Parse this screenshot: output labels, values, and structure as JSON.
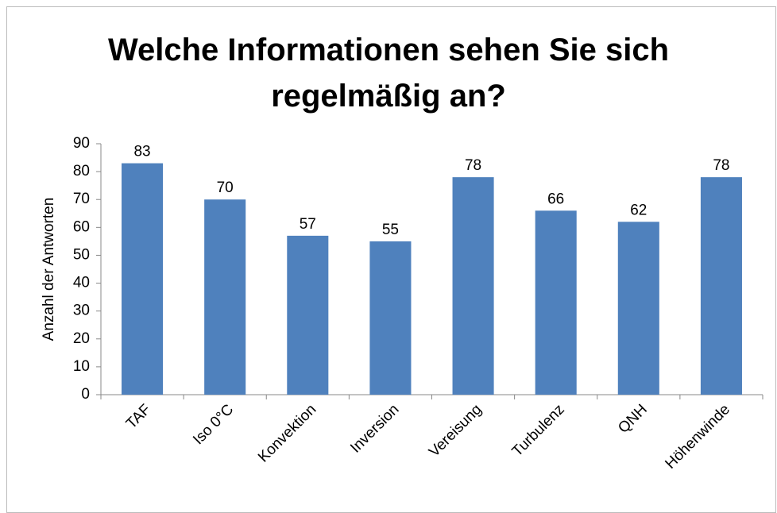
{
  "chart_data": {
    "type": "bar",
    "title": "Welche Informationen sehen Sie sich regelmäßig an?",
    "y_label": "Anzahl der Antworten",
    "categories": [
      "TAF",
      "Iso 0°C",
      "Konvektion",
      "Inversion",
      "Vereisung",
      "Turbulenz",
      "QNH",
      "Höhenwinde"
    ],
    "values": [
      83,
      70,
      57,
      55,
      78,
      66,
      62,
      78
    ],
    "color": "#4f81bd",
    "ylim": [
      0,
      90
    ],
    "yticks": [
      0,
      10,
      20,
      30,
      40,
      50,
      60,
      70,
      80,
      90
    ],
    "grid": false
  }
}
